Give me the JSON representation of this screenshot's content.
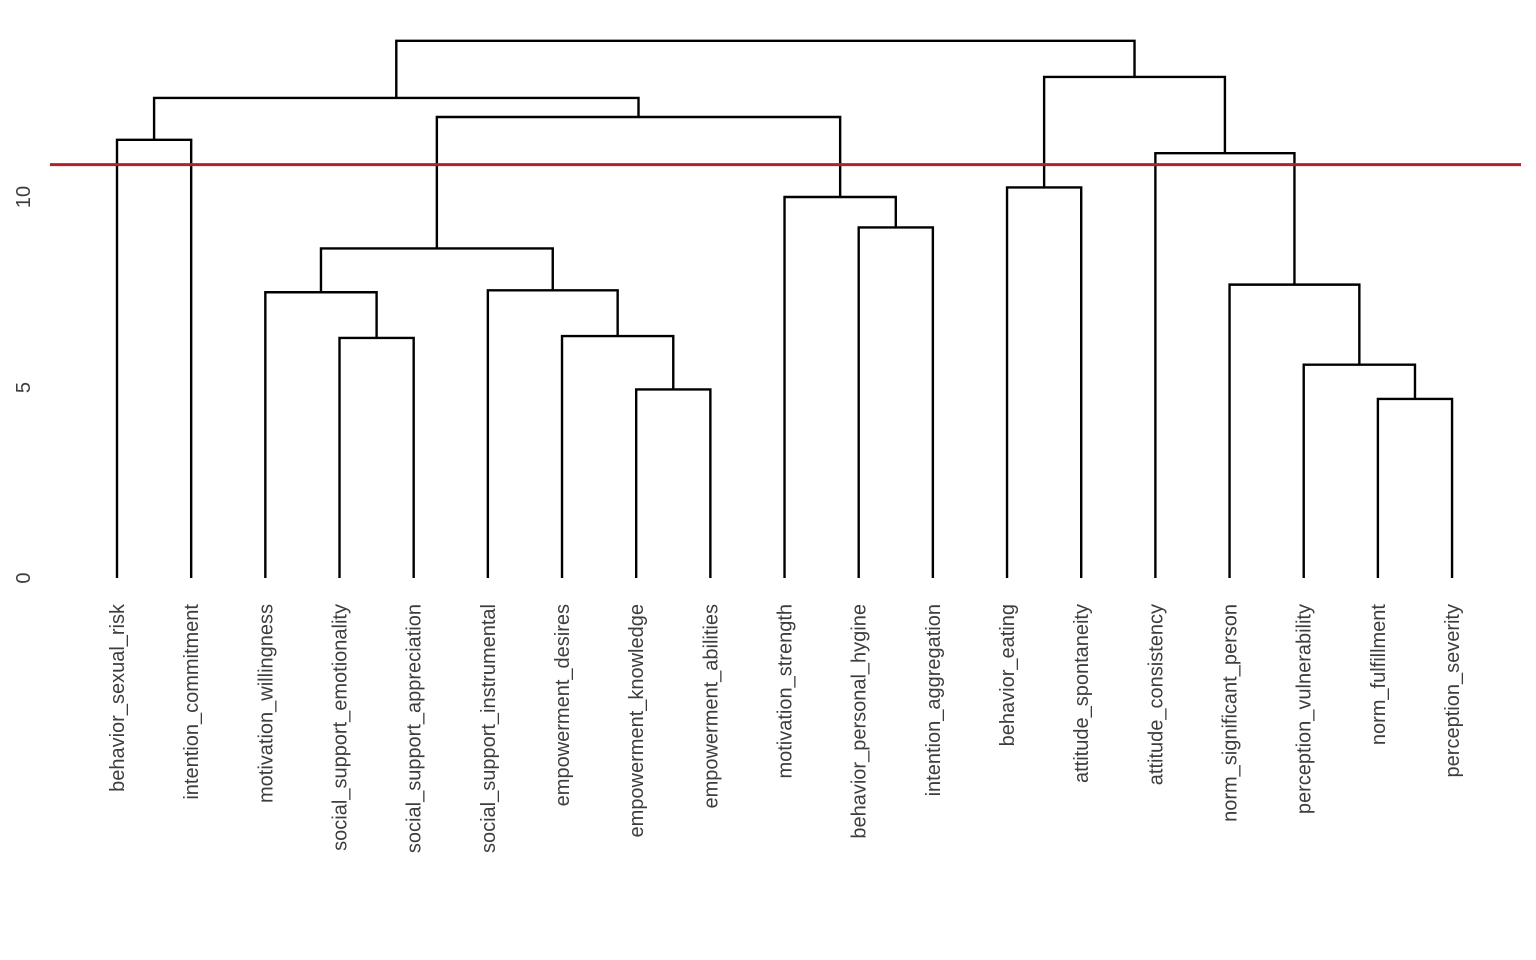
{
  "figure": {
    "background": "#ffffff"
  },
  "chart_data": {
    "type": "dendrogram",
    "title": "",
    "orientation": "top",
    "legend": "none",
    "grid": "off",
    "link_color": "#000000",
    "label_color": "#3d3d3d",
    "tick_label_color": "#3d3d3d",
    "cut_line": {
      "value": 10.85,
      "color": "#b22222"
    },
    "yaxis": {
      "side": "left",
      "ticks": [
        "0",
        "5",
        "10"
      ],
      "tick_values": [
        0,
        5,
        10
      ],
      "range": [
        0,
        14.6
      ],
      "tick_label_rotation": -90
    },
    "leaves": [
      "behavior_sexual_risk",
      "intention_commitment",
      "motivation_willingness",
      "social_support_emotionality",
      "social_support_appreciation",
      "social_support_instrumental",
      "empowerment_desires",
      "empowerment_knowledge",
      "empowerment_abilities",
      "motivation_strength",
      "behavior_personal_hygine",
      "intention_aggregation",
      "behavior_eating",
      "attitude_spontaneity",
      "attitude_consistency",
      "norm_significant_person",
      "perception_vulnerability",
      "norm_fulfillment",
      "perception_severity"
    ],
    "tree": {
      "height": 14.1,
      "children": [
        {
          "height": 12.6,
          "children": [
            {
              "height": 11.5,
              "children": [
                {
                  "label": "behavior_sexual_risk"
                },
                {
                  "label": "intention_commitment"
                }
              ]
            },
            {
              "height": 12.1,
              "children": [
                {
                  "height": 8.65,
                  "children": [
                    {
                      "height": 7.5,
                      "children": [
                        {
                          "label": "motivation_willingness"
                        },
                        {
                          "height": 6.3,
                          "children": [
                            {
                              "label": "social_support_emotionality"
                            },
                            {
                              "label": "social_support_appreciation"
                            }
                          ]
                        }
                      ]
                    },
                    {
                      "height": 7.55,
                      "children": [
                        {
                          "label": "social_support_instrumental"
                        },
                        {
                          "height": 6.35,
                          "children": [
                            {
                              "label": "empowerment_desires"
                            },
                            {
                              "height": 4.95,
                              "children": [
                                {
                                  "label": "empowerment_knowledge"
                                },
                                {
                                  "label": "empowerment_abilities"
                                }
                              ]
                            }
                          ]
                        }
                      ]
                    }
                  ]
                },
                {
                  "height": 10.0,
                  "children": [
                    {
                      "label": "motivation_strength"
                    },
                    {
                      "height": 9.2,
                      "children": [
                        {
                          "label": "behavior_personal_hygine"
                        },
                        {
                          "label": "intention_aggregation"
                        }
                      ]
                    }
                  ]
                }
              ]
            }
          ]
        },
        {
          "height": 13.15,
          "children": [
            {
              "height": 10.25,
              "children": [
                {
                  "label": "behavior_eating"
                },
                {
                  "label": "attitude_spontaneity"
                }
              ]
            },
            {
              "height": 11.15,
              "children": [
                {
                  "label": "attitude_consistency"
                },
                {
                  "height": 7.7,
                  "children": [
                    {
                      "label": "norm_significant_person"
                    },
                    {
                      "height": 5.6,
                      "children": [
                        {
                          "label": "perception_vulnerability"
                        },
                        {
                          "height": 4.7,
                          "children": [
                            {
                              "label": "norm_fulfillment"
                            },
                            {
                              "label": "perception_severity"
                            }
                          ]
                        }
                      ]
                    }
                  ]
                }
              ]
            }
          ]
        }
      ]
    }
  }
}
